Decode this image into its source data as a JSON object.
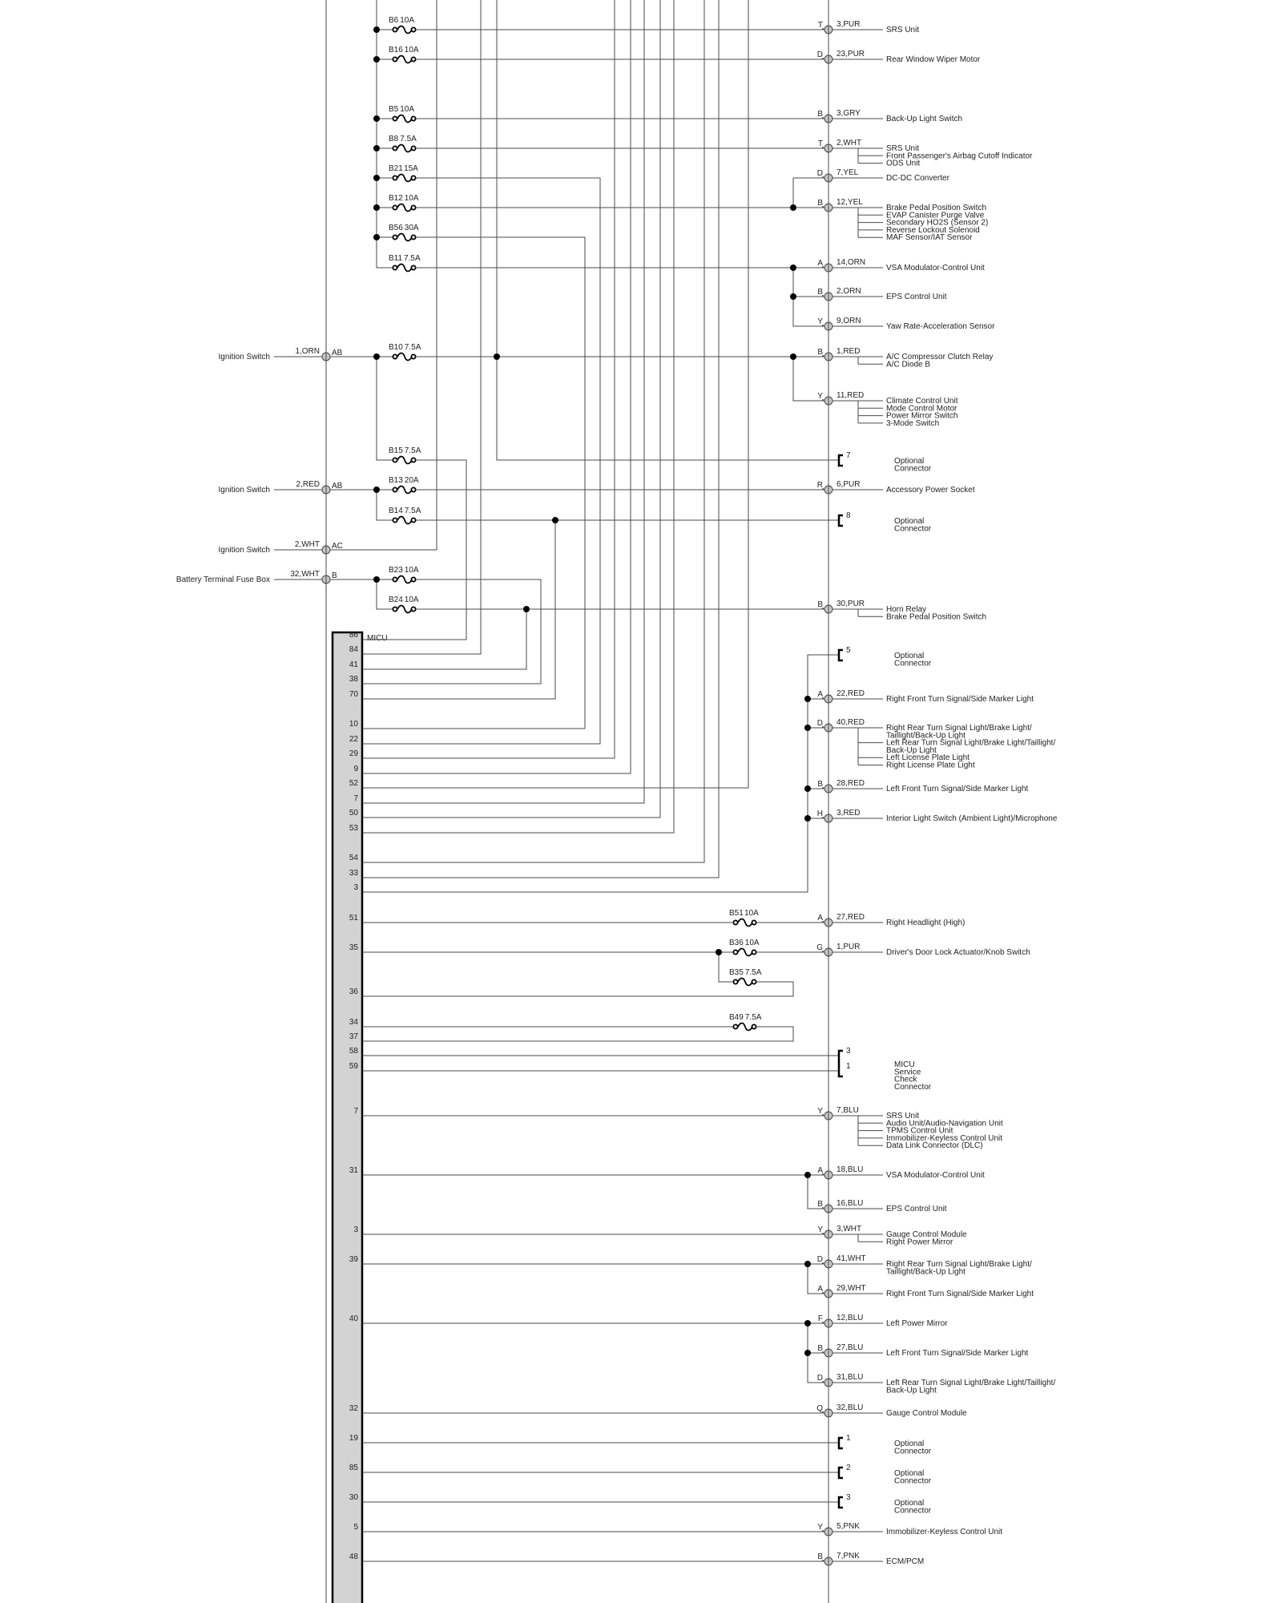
{
  "colors": {
    "wire": "#4a4a4a",
    "connector_fill": "#c8c8c8",
    "micu_fill": "#d3d3d3",
    "text": "#222222"
  },
  "micu": {
    "label": "MICU"
  },
  "fuses": [
    {
      "id": "B6",
      "rating": "10A"
    },
    {
      "id": "B16",
      "rating": "10A"
    },
    {
      "id": "B5",
      "rating": "10A"
    },
    {
      "id": "B8",
      "rating": "7.5A"
    },
    {
      "id": "B21",
      "rating": "15A"
    },
    {
      "id": "B12",
      "rating": "10A"
    },
    {
      "id": "B56",
      "rating": "30A"
    },
    {
      "id": "B11",
      "rating": "7.5A"
    },
    {
      "id": "B10",
      "rating": "7.5A"
    },
    {
      "id": "B15",
      "rating": "7.5A"
    },
    {
      "id": "B13",
      "rating": "20A"
    },
    {
      "id": "B14",
      "rating": "7.5A"
    },
    {
      "id": "B23",
      "rating": "10A"
    },
    {
      "id": "B24",
      "rating": "10A"
    },
    {
      "id": "B51",
      "rating": "10A"
    },
    {
      "id": "B36",
      "rating": "10A"
    },
    {
      "id": "B35",
      "rating": "7.5A"
    },
    {
      "id": "B49",
      "rating": "7.5A"
    }
  ],
  "inputs": [
    {
      "source": "Ignition Switch",
      "wire": "1,ORN",
      "terminal": "AB"
    },
    {
      "source": "Ignition Switch",
      "wire": "2,RED",
      "terminal": "AB"
    },
    {
      "source": "Ignition Switch",
      "wire": "2,WHT",
      "terminal": "AC"
    },
    {
      "source": "Battery Terminal Fuse Box",
      "wire": "32,WHT",
      "terminal": "B"
    }
  ],
  "micu_pins": [
    "86",
    "84",
    "41",
    "38",
    "70",
    "10",
    "22",
    "29",
    "9",
    "52",
    "7",
    "50",
    "53",
    "54",
    "33",
    "3",
    "51",
    "35",
    "36",
    "34",
    "37",
    "58",
    "59",
    "7",
    "31",
    "3",
    "39",
    "40",
    "32",
    "19",
    "85",
    "30",
    "5",
    "48"
  ],
  "outputs": [
    {
      "type": "connector",
      "terminal": "T",
      "wire": "3,PUR",
      "loads": [
        [
          "SRS Unit"
        ]
      ]
    },
    {
      "type": "connector",
      "terminal": "D",
      "wire": "23,PUR",
      "loads": [
        [
          "Rear Window Wiper Motor"
        ]
      ]
    },
    {
      "type": "connector",
      "terminal": "B",
      "wire": "3,GRY",
      "loads": [
        [
          "Back-Up Light Switch"
        ]
      ]
    },
    {
      "type": "connector",
      "terminal": "T",
      "wire": "2,WHT",
      "loads": [
        [
          "SRS Unit"
        ],
        [
          "Front Passenger's Airbag Cutoff Indicator"
        ],
        [
          "ODS Unit"
        ]
      ]
    },
    {
      "type": "connector",
      "terminal": "D",
      "wire": "7,YEL",
      "loads": [
        [
          "DC-DC Converter"
        ]
      ]
    },
    {
      "type": "connector",
      "terminal": "B",
      "wire": "12,YEL",
      "loads": [
        [
          "Brake Pedal Position Switch"
        ],
        [
          "EVAP Canister Purge Valve"
        ],
        [
          "Secondary HO2S (Sensor 2)"
        ],
        [
          "Reverse Lockout Solenoid"
        ],
        [
          "MAF Sensor/IAT Sensor"
        ]
      ]
    },
    {
      "type": "connector",
      "terminal": "A",
      "wire": "14,ORN",
      "loads": [
        [
          "VSA Modulator-Control Unit"
        ]
      ]
    },
    {
      "type": "connector",
      "terminal": "B",
      "wire": "2,ORN",
      "loads": [
        [
          "EPS Control Unit"
        ]
      ]
    },
    {
      "type": "connector",
      "terminal": "Y",
      "wire": "9,ORN",
      "loads": [
        [
          "Yaw Rate-Acceleration Sensor"
        ]
      ]
    },
    {
      "type": "connector",
      "terminal": "B",
      "wire": "1,RED",
      "loads": [
        [
          "A/C Compressor Clutch Relay"
        ],
        [
          "A/C Diode B"
        ]
      ]
    },
    {
      "type": "connector",
      "terminal": "Y",
      "wire": "11,RED",
      "loads": [
        [
          "Climate Control Unit"
        ],
        [
          "Mode Control Motor"
        ],
        [
          "Power Mirror Switch"
        ],
        [
          "3-Mode Switch"
        ]
      ]
    },
    {
      "type": "optional",
      "pins": [
        "7"
      ],
      "label": [
        "Optional",
        "Connector"
      ]
    },
    {
      "type": "connector",
      "terminal": "R",
      "wire": "6,PUR",
      "loads": [
        [
          "Accessory Power Socket"
        ]
      ]
    },
    {
      "type": "optional",
      "pins": [
        "8"
      ],
      "label": [
        "Optional",
        "Connector"
      ]
    },
    {
      "type": "connector",
      "terminal": "B",
      "wire": "30,PUR",
      "loads": [
        [
          "Horn Relay"
        ],
        [
          "Brake Pedal Position Switch"
        ]
      ]
    },
    {
      "type": "optional",
      "pins": [
        "5"
      ],
      "label": [
        "Optional",
        "Connector"
      ]
    },
    {
      "type": "connector",
      "terminal": "A",
      "wire": "22,RED",
      "loads": [
        [
          "Right Front Turn Signal/Side Marker Light"
        ]
      ]
    },
    {
      "type": "connector",
      "terminal": "D",
      "wire": "40,RED",
      "loads": [
        [
          "Right Rear Turn Signal Light/Brake Light/",
          "Taillight/Back-Up Light"
        ],
        [
          "Left Rear Turn Signal Light/Brake Light/Taillight/",
          "Back-Up Light"
        ],
        [
          "Left License Plate Light"
        ],
        [
          "Right License Plate Light"
        ]
      ]
    },
    {
      "type": "connector",
      "terminal": "B",
      "wire": "28,RED",
      "loads": [
        [
          "Left Front Turn Signal/Side Marker Light"
        ]
      ]
    },
    {
      "type": "connector",
      "terminal": "H",
      "wire": "3,RED",
      "loads": [
        [
          "Interior Light Switch (Ambient Light)/Microphone"
        ]
      ]
    },
    {
      "type": "connector",
      "terminal": "A",
      "wire": "27,RED",
      "loads": [
        [
          "Right Headlight (High)"
        ]
      ]
    },
    {
      "type": "connector",
      "terminal": "G",
      "wire": "1,PUR",
      "loads": [
        [
          "Driver's Door Lock Actuator/Knob Switch"
        ]
      ]
    },
    {
      "type": "service",
      "pins": [
        "3",
        "1"
      ],
      "label": [
        "MICU",
        "Service",
        "Check",
        "Connector"
      ]
    },
    {
      "type": "connector",
      "terminal": "Y",
      "wire": "7,BLU",
      "loads": [
        [
          "SRS Unit"
        ],
        [
          "Audio Unit/Audio-Navigation Unit"
        ],
        [
          "TPMS Control Unit"
        ],
        [
          "Immobilizer-Keyless Control Unit"
        ],
        [
          "Data Link Connector (DLC)"
        ]
      ]
    },
    {
      "type": "connector",
      "terminal": "A",
      "wire": "18,BLU",
      "loads": [
        [
          "VSA Modulator-Control Unit"
        ]
      ]
    },
    {
      "type": "connector",
      "terminal": "B",
      "wire": "16,BLU",
      "loads": [
        [
          "EPS Control Unit"
        ]
      ]
    },
    {
      "type": "connector",
      "terminal": "Y",
      "wire": "3,WHT",
      "loads": [
        [
          "Gauge Control Module"
        ],
        [
          "Right Power Mirror"
        ]
      ]
    },
    {
      "type": "connector",
      "terminal": "D",
      "wire": "41,WHT",
      "loads": [
        [
          "Right Rear Turn Signal Light/Brake Light/",
          "Taillight/Back-Up Light"
        ]
      ]
    },
    {
      "type": "connector",
      "terminal": "A",
      "wire": "29,WHT",
      "loads": [
        [
          "Right Front Turn Signal/Side Marker Light"
        ]
      ]
    },
    {
      "type": "connector",
      "terminal": "F",
      "wire": "12,BLU",
      "loads": [
        [
          "Left Power Mirror"
        ]
      ]
    },
    {
      "type": "connector",
      "terminal": "B",
      "wire": "27,BLU",
      "loads": [
        [
          "Left Front Turn Signal/Side Marker Light"
        ]
      ]
    },
    {
      "type": "connector",
      "terminal": "D",
      "wire": "31,BLU",
      "loads": [
        [
          "Left Rear Turn Signal Light/Brake Light/Taillight/",
          "Back-Up Light"
        ]
      ]
    },
    {
      "type": "connector",
      "terminal": "Q",
      "wire": "32,BLU",
      "loads": [
        [
          "Gauge Control Module"
        ]
      ]
    },
    {
      "type": "optional",
      "pins": [
        "1"
      ],
      "label": [
        "Optional",
        "Connector"
      ]
    },
    {
      "type": "optional",
      "pins": [
        "2"
      ],
      "label": [
        "Optional",
        "Connector"
      ]
    },
    {
      "type": "optional",
      "pins": [
        "3"
      ],
      "label": [
        "Optional",
        "Connector"
      ]
    },
    {
      "type": "connector",
      "terminal": "Y",
      "wire": "5,PNK",
      "loads": [
        [
          "Immobilizer-Keyless Control Unit"
        ]
      ]
    },
    {
      "type": "connector",
      "terminal": "B",
      "wire": "7,PNK",
      "loads": [
        [
          "ECM/PCM"
        ]
      ]
    }
  ]
}
